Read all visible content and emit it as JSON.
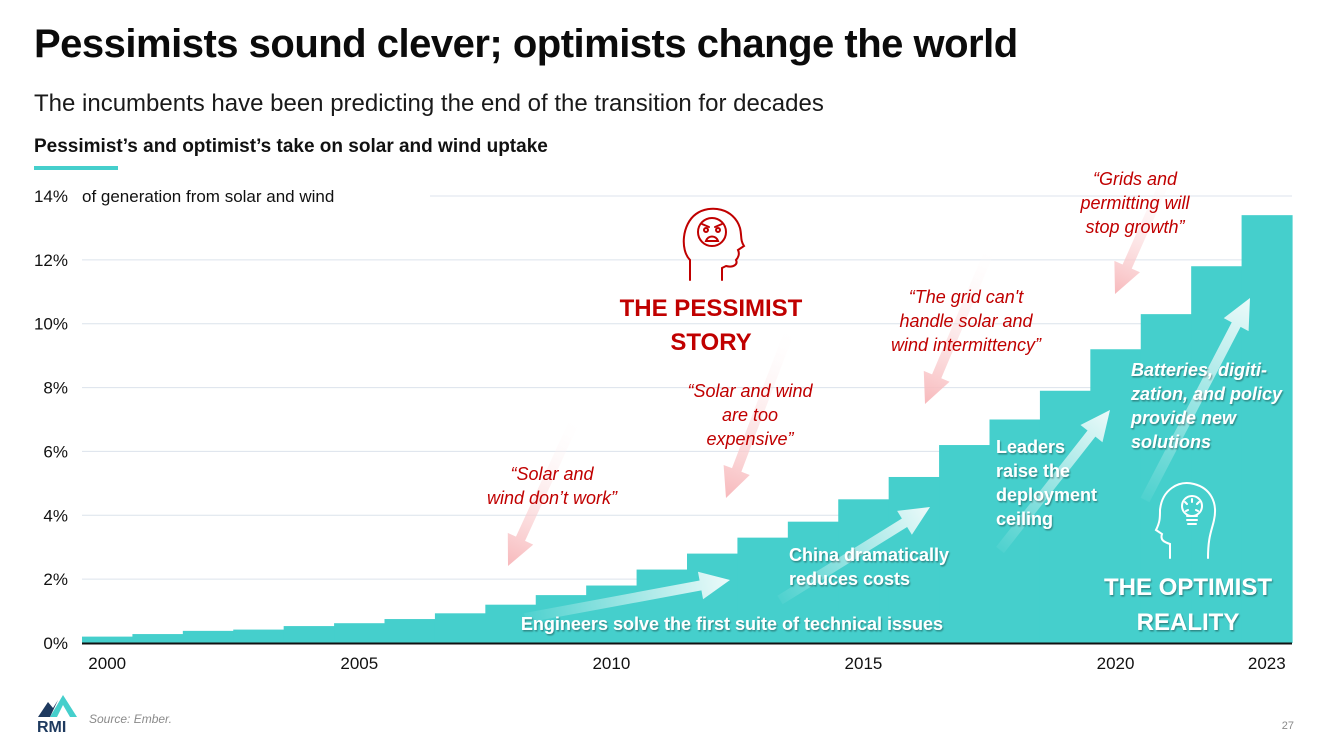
{
  "header": {
    "title": "Pessimists sound clever; optimists change the world",
    "subtitle": "The incumbents have been predicting the end of the transition for decades",
    "chart_title": "Pessimist’s and optimist’s take on solar and wind uptake"
  },
  "colors": {
    "accent": "#45CFCC",
    "pessimist_red": "#C00000",
    "gridline": "#DCE3EC",
    "axis": "#111111"
  },
  "chart_data": {
    "type": "bar",
    "subtype": "step",
    "title": "Pessimist’s and optimist’s take on solar and wind uptake",
    "ylabel": "of generation from solar and wind",
    "xlabel": "",
    "ylim": [
      0,
      14
    ],
    "yticks": [
      0,
      2,
      4,
      6,
      8,
      10,
      12,
      14
    ],
    "ytick_labels": [
      "0%",
      "2%",
      "4%",
      "6%",
      "8%",
      "10%",
      "12%",
      "14%"
    ],
    "xtick_labels": [
      "2000",
      "2005",
      "2010",
      "2015",
      "2020",
      "2023"
    ],
    "xtick_years": [
      2000,
      2005,
      2010,
      2015,
      2020,
      2023
    ],
    "grid": true,
    "categories": [
      "2000",
      "2001",
      "2002",
      "2003",
      "2004",
      "2005",
      "2006",
      "2007",
      "2008",
      "2009",
      "2010",
      "2011",
      "2012",
      "2013",
      "2014",
      "2015",
      "2016",
      "2017",
      "2018",
      "2019",
      "2020",
      "2021",
      "2022",
      "2023"
    ],
    "values": [
      0.2,
      0.28,
      0.38,
      0.42,
      0.53,
      0.62,
      0.75,
      0.93,
      1.2,
      1.5,
      1.8,
      2.3,
      2.8,
      3.3,
      3.8,
      4.5,
      5.2,
      6.2,
      7.0,
      7.9,
      9.2,
      10.3,
      11.8,
      13.4
    ],
    "series_color": "#45CFCC",
    "pessimist": {
      "label_line1": "THE PESSIMIST",
      "label_line2": "STORY",
      "icon": "angry-head-icon",
      "quotes": [
        {
          "lines": [
            "“Solar and",
            "wind don’t work”"
          ],
          "year": 2008
        },
        {
          "lines": [
            "“Solar and wind",
            "are too",
            "expensive”"
          ],
          "year": 2013
        },
        {
          "lines": [
            "“The grid can't",
            "handle solar and",
            "wind intermittency”"
          ],
          "year": 2017
        },
        {
          "lines": [
            "“Grids and",
            "permitting will",
            "stop growth”"
          ],
          "year": 2021
        }
      ]
    },
    "optimist": {
      "label_line1": "THE OPTIMIST",
      "label_line2": "REALITY",
      "icon": "lightbulb-head-icon",
      "annotations": [
        {
          "lines": [
            "Engineers solve the first suite of technical issues"
          ],
          "style": "bold"
        },
        {
          "lines": [
            "China dramatically",
            "reduces costs"
          ],
          "style": "bold"
        },
        {
          "lines": [
            "Leaders",
            "raise the",
            "deployment",
            "ceiling"
          ],
          "style": "bold"
        },
        {
          "lines": [
            "Batteries, digiti-",
            "zation, and policy",
            "provide new",
            "solutions"
          ],
          "style": "bold-italic"
        }
      ]
    }
  },
  "footer": {
    "source": "Source: Ember.",
    "logo_text": "RMI",
    "page_number": "27"
  }
}
